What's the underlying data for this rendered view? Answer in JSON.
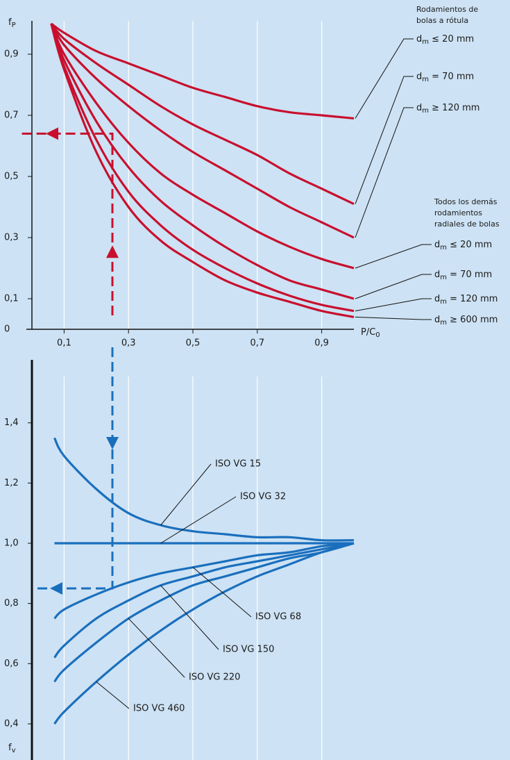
{
  "chart_data": [
    {
      "type": "line",
      "ylabel": [
        "f",
        "P"
      ],
      "xlabel": [
        "P/C",
        "0"
      ],
      "xlim": [
        0,
        1
      ],
      "ylim": [
        0,
        1
      ],
      "xticks": [
        {
          "value": 0.1,
          "label": "0,1"
        },
        {
          "value": 0.3,
          "label": "0,3"
        },
        {
          "value": 0.5,
          "label": "0,5"
        },
        {
          "value": 0.7,
          "label": "0,7"
        },
        {
          "value": 0.9,
          "label": "0,9"
        }
      ],
      "yticks": [
        0,
        {
          "value": 0.1,
          "label": "0,1"
        },
        {
          "value": 0.3,
          "label": "0,3"
        },
        {
          "value": 0.5,
          "label": "0,5"
        },
        {
          "value": 0.7,
          "label": "0,7"
        },
        {
          "value": 0.9,
          "label": "0,9"
        }
      ],
      "grid": true,
      "groups": [
        [
          "Rodamientos de",
          "bolas a rótula"
        ],
        [
          "Todos los demás",
          "rodamientos",
          "radiales de bolas"
        ]
      ],
      "x": [
        0.06,
        0.1,
        0.2,
        0.3,
        0.4,
        0.5,
        0.6,
        0.7,
        0.8,
        0.9,
        1.0
      ],
      "series": [
        {
          "name": [
            "d",
            "m",
            " ≤ 20 mm"
          ],
          "color": "#c8102e",
          "values": [
            1.0,
            0.97,
            0.91,
            0.87,
            0.83,
            0.79,
            0.76,
            0.73,
            0.71,
            0.7,
            0.69
          ]
        },
        {
          "name": [
            "d",
            "m",
            " = 70 mm"
          ],
          "color": "#c8102e",
          "values": [
            1.0,
            0.95,
            0.87,
            0.8,
            0.73,
            0.67,
            0.62,
            0.57,
            0.51,
            0.46,
            0.41
          ]
        },
        {
          "name": [
            "d",
            "m",
            " ≥ 120 mm"
          ],
          "color": "#c8102e",
          "values": [
            1.0,
            0.93,
            0.82,
            0.73,
            0.65,
            0.58,
            0.52,
            0.46,
            0.4,
            0.35,
            0.3
          ]
        },
        {
          "name": [
            "d",
            "m",
            " ≤ 20 mm"
          ],
          "color": "#c8102e",
          "values": [
            1.0,
            0.9,
            0.74,
            0.61,
            0.51,
            0.44,
            0.38,
            0.32,
            0.27,
            0.23,
            0.2
          ]
        },
        {
          "name": [
            "d",
            "m",
            " = 70 mm"
          ],
          "color": "#c8102e",
          "values": [
            1.0,
            0.88,
            0.68,
            0.53,
            0.42,
            0.34,
            0.27,
            0.21,
            0.16,
            0.13,
            0.1
          ]
        },
        {
          "name": [
            "d",
            "m",
            " = 120 mm"
          ],
          "color": "#c8102e",
          "values": [
            1.0,
            0.86,
            0.62,
            0.45,
            0.34,
            0.26,
            0.2,
            0.15,
            0.11,
            0.08,
            0.06
          ]
        },
        {
          "name": [
            "d",
            "m",
            " ≥ 600 mm"
          ],
          "color": "#c8102e",
          "values": [
            1.0,
            0.85,
            0.58,
            0.4,
            0.29,
            0.22,
            0.16,
            0.12,
            0.09,
            0.06,
            0.04
          ]
        }
      ],
      "example": {
        "x": 0.25,
        "y": 0.64,
        "color": "#c8102e"
      }
    },
    {
      "type": "line",
      "ylabel": [
        "f",
        "v"
      ],
      "xlim": [
        0,
        1
      ],
      "ylim": [
        0.28,
        1.6
      ],
      "yticks": [
        {
          "value": 0.4,
          "label": "0,4"
        },
        {
          "value": 0.6,
          "label": "0,6"
        },
        {
          "value": 0.8,
          "label": "0,8"
        },
        {
          "value": 1.0,
          "label": "1,0"
        },
        {
          "value": 1.2,
          "label": "1,2"
        },
        {
          "value": 1.4,
          "label": "1,4"
        }
      ],
      "grid": true,
      "x": [
        0.07,
        0.1,
        0.2,
        0.3,
        0.4,
        0.5,
        0.6,
        0.7,
        0.8,
        0.9,
        1.0
      ],
      "series": [
        {
          "name": "ISO VG 15",
          "color": "#1a6fbd",
          "values": [
            1.35,
            1.29,
            1.18,
            1.1,
            1.06,
            1.04,
            1.03,
            1.02,
            1.02,
            1.01,
            1.01
          ]
        },
        {
          "name": "ISO VG 32",
          "color": "#1a6fbd",
          "values": [
            1.0,
            1.0,
            1.0,
            1.0,
            1.0,
            1.0,
            1.0,
            1.0,
            1.0,
            1.0,
            1.0
          ]
        },
        {
          "name": "ISO VG 68",
          "color": "#1a6fbd",
          "values": [
            0.75,
            0.78,
            0.83,
            0.87,
            0.9,
            0.92,
            0.94,
            0.96,
            0.97,
            0.99,
            1.0
          ]
        },
        {
          "name": "ISO VG 150",
          "color": "#1a6fbd",
          "values": [
            0.62,
            0.66,
            0.75,
            0.81,
            0.86,
            0.89,
            0.92,
            0.94,
            0.96,
            0.98,
            1.0
          ]
        },
        {
          "name": "ISO VG 220",
          "color": "#1a6fbd",
          "values": [
            0.54,
            0.58,
            0.67,
            0.75,
            0.81,
            0.86,
            0.89,
            0.92,
            0.95,
            0.97,
            1.0
          ]
        },
        {
          "name": "ISO VG 460",
          "color": "#1a6fbd",
          "values": [
            0.4,
            0.44,
            0.54,
            0.63,
            0.71,
            0.78,
            0.84,
            0.89,
            0.93,
            0.97,
            1.0
          ]
        }
      ],
      "example": {
        "x": 0.25,
        "y": 0.85,
        "color": "#1a6fbd"
      }
    }
  ]
}
